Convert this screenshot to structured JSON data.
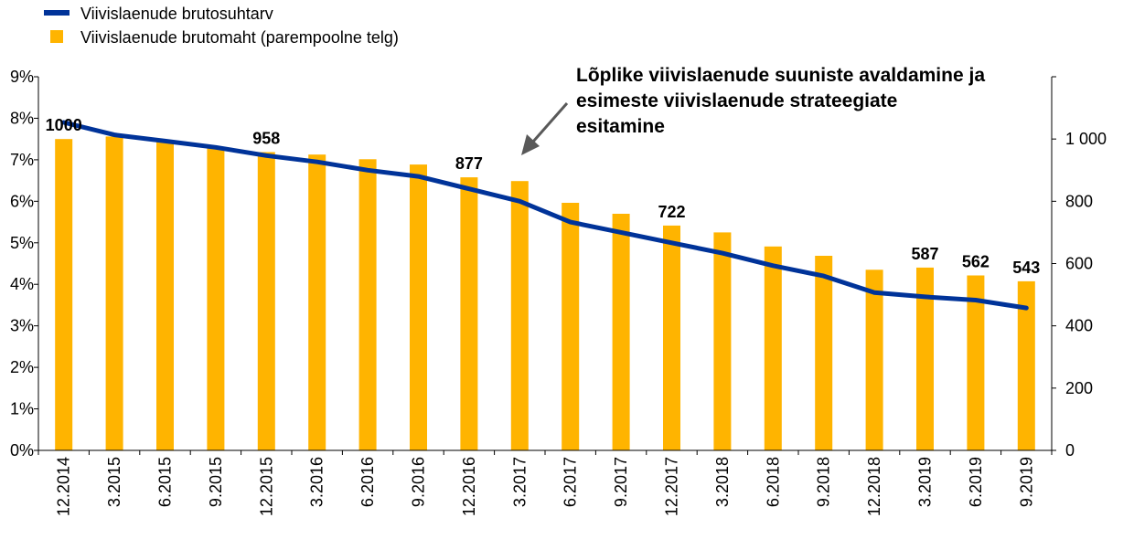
{
  "chart_data": {
    "type": "bar",
    "categories": [
      "12.2014",
      "3.2015",
      "6.2015",
      "9.2015",
      "12.2015",
      "3.2016",
      "6.2016",
      "9.2016",
      "12.2016",
      "3.2017",
      "6.2017",
      "9.2017",
      "12.2017",
      "3.2018",
      "6.2018",
      "9.2018",
      "12.2018",
      "3.2019",
      "6.2019",
      "9.2019"
    ],
    "series": [
      {
        "name": "Viivislaenude brutosuhtarv",
        "type": "line",
        "axis": "left",
        "unit": "%",
        "color": "#003399",
        "values": [
          7.9,
          7.6,
          7.45,
          7.3,
          7.1,
          6.95,
          6.75,
          6.6,
          6.3,
          6.0,
          5.5,
          5.25,
          5.0,
          4.75,
          4.45,
          4.2,
          3.8,
          3.7,
          3.62,
          3.43
        ]
      },
      {
        "name": "Viivislaenude brutomaht (parempoolne telg)",
        "type": "bar",
        "axis": "right",
        "color": "#FFB400",
        "values": [
          1000,
          1008,
          990,
          975,
          958,
          950,
          935,
          918,
          877,
          865,
          795,
          760,
          722,
          700,
          655,
          625,
          580,
          587,
          562,
          543
        ],
        "data_labels": {
          "0": "1000",
          "4": "958",
          "8": "877",
          "12": "722",
          "17": "587",
          "18": "562",
          "19": "543"
        }
      }
    ],
    "y_left": {
      "min": 0,
      "max": 9,
      "ticks": [
        "0%",
        "1%",
        "2%",
        "3%",
        "4%",
        "5%",
        "6%",
        "7%",
        "8%",
        "9%"
      ]
    },
    "y_right": {
      "min": 0,
      "max": 1200,
      "ticks": [
        "0",
        "200",
        "400",
        "600",
        "800",
        "1 000"
      ]
    },
    "annotation": {
      "lines": [
        "Lõplike viivislaenude suuniste avaldamine ja",
        "esimeste viivislaenude strateegiate",
        "esitamine"
      ],
      "target_category": "3.2017"
    },
    "grid": false,
    "legend_position": "top-left"
  }
}
